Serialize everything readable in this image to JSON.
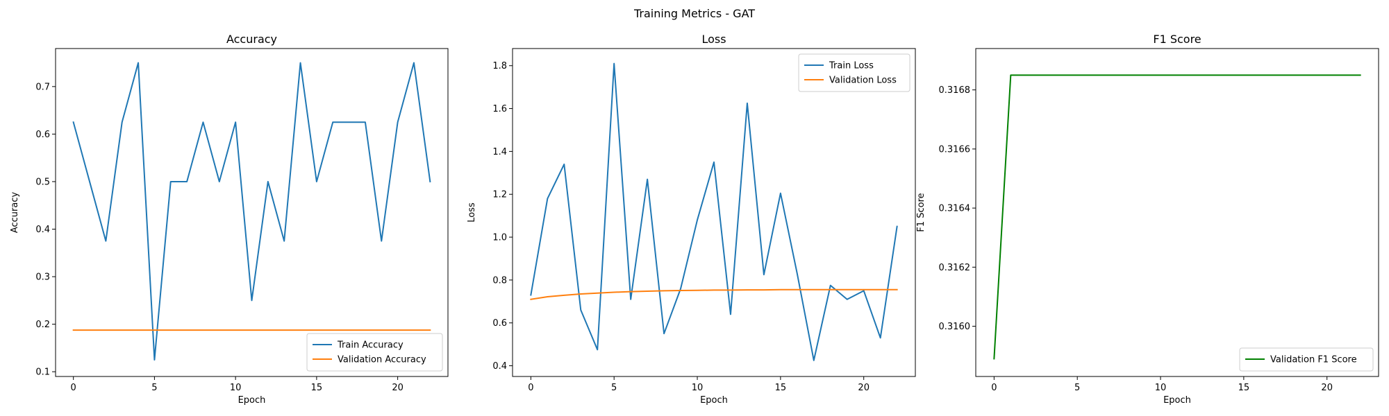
{
  "suptitle": "Training Metrics - GAT",
  "chart_data": [
    {
      "type": "line",
      "title": "Accuracy",
      "xlabel": "Epoch",
      "ylabel": "Accuracy",
      "x": [
        0,
        1,
        2,
        3,
        4,
        5,
        6,
        7,
        8,
        9,
        10,
        11,
        12,
        13,
        14,
        15,
        16,
        17,
        18,
        19,
        20,
        21,
        22
      ],
      "xlim": [
        -1.1,
        23.1
      ],
      "ylim": [
        0.09,
        0.78
      ],
      "xticks": [
        0,
        5,
        10,
        15,
        20
      ],
      "yticks": [
        0.1,
        0.2,
        0.3,
        0.4,
        0.5,
        0.6,
        0.7
      ],
      "ytick_labels": [
        "0.1",
        "0.2",
        "0.3",
        "0.4",
        "0.5",
        "0.6",
        "0.7"
      ],
      "legend_loc": "lower-right",
      "series": [
        {
          "name": "Train Accuracy",
          "color": "#1f77b4",
          "values": [
            0.625,
            0.5,
            0.375,
            0.625,
            0.75,
            0.125,
            0.5,
            0.5,
            0.625,
            0.5,
            0.625,
            0.25,
            0.5,
            0.375,
            0.75,
            0.5,
            0.625,
            0.625,
            0.625,
            0.375,
            0.625,
            0.75,
            0.5
          ]
        },
        {
          "name": "Validation Accuracy",
          "color": "#ff7f0e",
          "values": [
            0.1875,
            0.1875,
            0.1875,
            0.1875,
            0.1875,
            0.1875,
            0.1875,
            0.1875,
            0.1875,
            0.1875,
            0.1875,
            0.1875,
            0.1875,
            0.1875,
            0.1875,
            0.1875,
            0.1875,
            0.1875,
            0.1875,
            0.1875,
            0.1875,
            0.1875,
            0.1875
          ]
        }
      ]
    },
    {
      "type": "line",
      "title": "Loss",
      "xlabel": "Epoch",
      "ylabel": "Loss",
      "x": [
        0,
        1,
        2,
        3,
        4,
        5,
        6,
        7,
        8,
        9,
        10,
        11,
        12,
        13,
        14,
        15,
        16,
        17,
        18,
        19,
        20,
        21,
        22
      ],
      "xlim": [
        -1.1,
        23.1
      ],
      "ylim": [
        0.35,
        1.88
      ],
      "xticks": [
        0,
        5,
        10,
        15,
        20
      ],
      "yticks": [
        0.4,
        0.6,
        0.8,
        1.0,
        1.2,
        1.4,
        1.6,
        1.8
      ],
      "ytick_labels": [
        "0.4",
        "0.6",
        "0.8",
        "1.0",
        "1.2",
        "1.4",
        "1.6",
        "1.8"
      ],
      "legend_loc": "top-right",
      "series": [
        {
          "name": "Train Loss",
          "color": "#1f77b4",
          "values": [
            0.73,
            1.18,
            1.34,
            0.66,
            0.475,
            1.81,
            0.71,
            1.27,
            0.55,
            0.76,
            1.08,
            1.35,
            0.64,
            1.625,
            0.825,
            1.205,
            0.83,
            0.425,
            0.775,
            0.71,
            0.75,
            0.53,
            1.05
          ]
        },
        {
          "name": "Validation Loss",
          "color": "#ff7f0e",
          "values": [
            0.71,
            0.722,
            0.729,
            0.735,
            0.739,
            0.743,
            0.746,
            0.748,
            0.75,
            0.751,
            0.752,
            0.753,
            0.753,
            0.754,
            0.754,
            0.755,
            0.755,
            0.755,
            0.755,
            0.755,
            0.755,
            0.755,
            0.755
          ]
        }
      ]
    },
    {
      "type": "line",
      "title": "F1 Score",
      "xlabel": "Epoch",
      "ylabel": "F1 Score",
      "x": [
        0,
        1,
        2,
        3,
        4,
        5,
        6,
        7,
        8,
        9,
        10,
        11,
        12,
        13,
        14,
        15,
        16,
        17,
        18,
        19,
        20,
        21,
        22
      ],
      "xlim": [
        -1.1,
        23.1
      ],
      "ylim": [
        0.31583,
        0.31694
      ],
      "xticks": [
        0,
        5,
        10,
        15,
        20
      ],
      "yticks": [
        0.316,
        0.3162,
        0.3164,
        0.3166,
        0.3168
      ],
      "ytick_labels": [
        "0.3160",
        "0.3162",
        "0.3164",
        "0.3166",
        "0.3168"
      ],
      "legend_loc": "lower-right",
      "series": [
        {
          "name": "Validation F1 Score",
          "color": "#008000",
          "values": [
            0.31589,
            0.31685,
            0.31685,
            0.31685,
            0.31685,
            0.31685,
            0.31685,
            0.31685,
            0.31685,
            0.31685,
            0.31685,
            0.31685,
            0.31685,
            0.31685,
            0.31685,
            0.31685,
            0.31685,
            0.31685,
            0.31685,
            0.31685,
            0.31685,
            0.31685,
            0.31685
          ]
        }
      ]
    }
  ]
}
